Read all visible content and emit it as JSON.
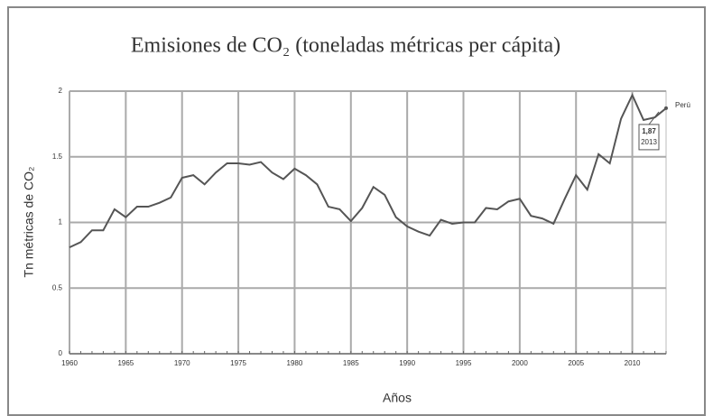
{
  "chart_data": {
    "type": "line",
    "title": "Emisiones de CO₂ (toneladas métricas per cápita)",
    "x_label": "Años",
    "y_label": "Tn métricas de CO₂",
    "x": [
      1960,
      1961,
      1962,
      1963,
      1964,
      1965,
      1966,
      1967,
      1968,
      1969,
      1970,
      1971,
      1972,
      1973,
      1974,
      1975,
      1976,
      1977,
      1978,
      1979,
      1980,
      1981,
      1982,
      1983,
      1984,
      1985,
      1986,
      1987,
      1988,
      1989,
      1990,
      1991,
      1992,
      1993,
      1994,
      1995,
      1996,
      1997,
      1998,
      1999,
      2000,
      2001,
      2002,
      2003,
      2004,
      2005,
      2006,
      2007,
      2008,
      2009,
      2010,
      2011,
      2012,
      2013
    ],
    "series": [
      {
        "name": "Perú",
        "color": "#555555",
        "values": [
          0.81,
          0.85,
          0.94,
          0.94,
          1.1,
          1.04,
          1.12,
          1.12,
          1.15,
          1.19,
          1.34,
          1.36,
          1.29,
          1.38,
          1.45,
          1.45,
          1.44,
          1.46,
          1.38,
          1.33,
          1.41,
          1.36,
          1.29,
          1.12,
          1.1,
          1.01,
          1.11,
          1.27,
          1.21,
          1.04,
          0.97,
          0.93,
          0.9,
          1.02,
          0.99,
          1.0,
          1.0,
          1.11,
          1.1,
          1.16,
          1.18,
          1.05,
          1.03,
          0.99,
          1.18,
          1.36,
          1.25,
          1.52,
          1.45,
          1.79,
          1.97,
          1.78,
          1.8,
          1.87
        ]
      }
    ],
    "annotations": [
      "1,87",
      "2013"
    ],
    "xlim": [
      1960,
      2013
    ],
    "xticks": [
      1960,
      1965,
      1970,
      1975,
      1980,
      1985,
      1990,
      1995,
      2000,
      2005,
      2010
    ],
    "ylim": [
      0,
      2
    ],
    "yticks": [
      0,
      0.5,
      1,
      1.5,
      2
    ],
    "grid": true
  }
}
